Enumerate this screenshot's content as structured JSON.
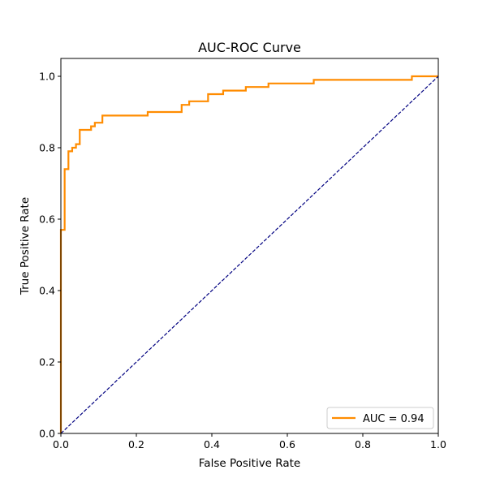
{
  "chart_data": {
    "type": "line",
    "title": "AUC-ROC Curve",
    "xlabel": "False Positive Rate",
    "ylabel": "True Positive Rate",
    "xlim": [
      0.0,
      1.0
    ],
    "ylim": [
      0.0,
      1.05
    ],
    "xticks": [
      "0.0",
      "0.2",
      "0.4",
      "0.6",
      "0.8",
      "1.0"
    ],
    "yticks": [
      "0.0",
      "0.2",
      "0.4",
      "0.6",
      "0.8",
      "1.0"
    ],
    "grid": false,
    "legend_position": "lower-right",
    "series": [
      {
        "name": "AUC = 0.94",
        "color": "#ff8c00",
        "style": "solid",
        "x": [
          0.0,
          0.0,
          0.01,
          0.01,
          0.02,
          0.02,
          0.03,
          0.03,
          0.04,
          0.04,
          0.05,
          0.05,
          0.08,
          0.08,
          0.09,
          0.09,
          0.11,
          0.11,
          0.23,
          0.23,
          0.32,
          0.32,
          0.34,
          0.34,
          0.39,
          0.39,
          0.43,
          0.43,
          0.49,
          0.49,
          0.55,
          0.55,
          0.67,
          0.67,
          0.93,
          0.93,
          1.0
        ],
        "y": [
          0.0,
          0.57,
          0.57,
          0.74,
          0.74,
          0.79,
          0.79,
          0.8,
          0.8,
          0.81,
          0.81,
          0.85,
          0.85,
          0.86,
          0.86,
          0.87,
          0.87,
          0.89,
          0.89,
          0.9,
          0.9,
          0.92,
          0.92,
          0.93,
          0.93,
          0.95,
          0.95,
          0.96,
          0.96,
          0.97,
          0.97,
          0.98,
          0.98,
          0.99,
          0.99,
          1.0,
          1.0
        ]
      },
      {
        "color": "#000080",
        "style": "dashed",
        "x": [
          0.0,
          1.0
        ],
        "y": [
          0.0,
          1.0
        ]
      }
    ]
  }
}
